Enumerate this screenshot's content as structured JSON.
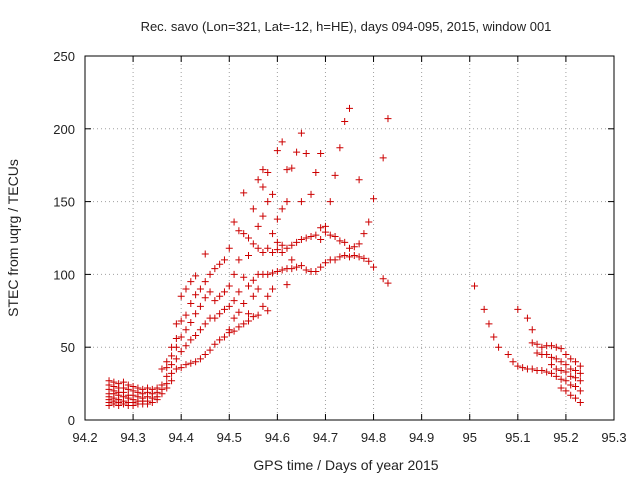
{
  "chart_data": {
    "type": "scatter",
    "title": "Rec. savo (Lon=321, Lat=-12, h=HE), days 094-095, 2015, window 001",
    "xlabel": "GPS time / Days of year 2015",
    "ylabel": "STEC from uqrg / TECUs",
    "xlim": [
      94.2,
      95.3
    ],
    "ylim": [
      0,
      250
    ],
    "xticks": [
      "94.2",
      "94.3",
      "94.4",
      "94.5",
      "94.6",
      "94.7",
      "94.8",
      "94.9",
      "95",
      "95.1",
      "95.2",
      "95.3"
    ],
    "yticks": [
      "0",
      "50",
      "100",
      "150",
      "200",
      "250"
    ],
    "marker": "+",
    "marker_color": "#cc0000",
    "grid": true,
    "border": true,
    "points": [
      [
        94.25,
        27
      ],
      [
        94.25,
        24
      ],
      [
        94.25,
        21
      ],
      [
        94.25,
        18
      ],
      [
        94.25,
        16
      ],
      [
        94.25,
        14
      ],
      [
        94.25,
        12
      ],
      [
        94.25,
        10
      ],
      [
        94.26,
        26
      ],
      [
        94.26,
        23
      ],
      [
        94.26,
        20
      ],
      [
        94.26,
        18
      ],
      [
        94.26,
        15
      ],
      [
        94.26,
        13
      ],
      [
        94.26,
        11
      ],
      [
        94.27,
        25
      ],
      [
        94.27,
        22
      ],
      [
        94.27,
        19
      ],
      [
        94.27,
        17
      ],
      [
        94.27,
        14
      ],
      [
        94.27,
        12
      ],
      [
        94.27,
        10
      ],
      [
        94.28,
        26
      ],
      [
        94.28,
        22
      ],
      [
        94.28,
        19
      ],
      [
        94.28,
        16
      ],
      [
        94.28,
        13
      ],
      [
        94.28,
        11
      ],
      [
        94.29,
        24
      ],
      [
        94.29,
        21
      ],
      [
        94.29,
        17
      ],
      [
        94.29,
        15
      ],
      [
        94.29,
        12
      ],
      [
        94.29,
        10
      ],
      [
        94.3,
        23
      ],
      [
        94.3,
        20
      ],
      [
        94.3,
        17
      ],
      [
        94.3,
        14
      ],
      [
        94.3,
        12
      ],
      [
        94.3,
        10
      ],
      [
        94.31,
        22
      ],
      [
        94.31,
        19
      ],
      [
        94.31,
        16
      ],
      [
        94.31,
        13
      ],
      [
        94.31,
        11
      ],
      [
        94.32,
        21
      ],
      [
        94.32,
        18
      ],
      [
        94.32,
        15
      ],
      [
        94.32,
        13
      ],
      [
        94.32,
        11
      ],
      [
        94.33,
        22
      ],
      [
        94.33,
        19
      ],
      [
        94.33,
        16
      ],
      [
        94.33,
        13
      ],
      [
        94.33,
        11
      ],
      [
        94.34,
        21
      ],
      [
        94.34,
        18
      ],
      [
        94.34,
        15
      ],
      [
        94.34,
        12
      ],
      [
        94.35,
        22
      ],
      [
        94.35,
        19
      ],
      [
        94.35,
        16
      ],
      [
        94.35,
        14
      ],
      [
        94.36,
        35
      ],
      [
        94.36,
        24
      ],
      [
        94.36,
        21
      ],
      [
        94.36,
        18
      ],
      [
        94.37,
        40
      ],
      [
        94.37,
        36
      ],
      [
        94.37,
        30
      ],
      [
        94.37,
        25
      ],
      [
        94.37,
        22
      ],
      [
        94.38,
        50
      ],
      [
        94.38,
        44
      ],
      [
        94.38,
        38
      ],
      [
        94.38,
        32
      ],
      [
        94.38,
        27
      ],
      [
        94.39,
        66
      ],
      [
        94.39,
        56
      ],
      [
        94.39,
        50
      ],
      [
        94.39,
        42
      ],
      [
        94.39,
        35
      ],
      [
        94.4,
        85
      ],
      [
        94.4,
        68
      ],
      [
        94.4,
        57
      ],
      [
        94.4,
        47
      ],
      [
        94.4,
        36
      ],
      [
        94.41,
        90
      ],
      [
        94.41,
        72
      ],
      [
        94.41,
        62
      ],
      [
        94.41,
        51
      ],
      [
        94.41,
        38
      ],
      [
        94.42,
        95
      ],
      [
        94.42,
        80
      ],
      [
        94.42,
        67
      ],
      [
        94.42,
        55
      ],
      [
        94.42,
        39
      ],
      [
        94.43,
        99
      ],
      [
        94.43,
        86
      ],
      [
        94.43,
        73
      ],
      [
        94.43,
        58
      ],
      [
        94.43,
        40
      ],
      [
        94.44,
        90
      ],
      [
        94.44,
        78
      ],
      [
        94.44,
        62
      ],
      [
        94.44,
        42
      ],
      [
        94.45,
        114
      ],
      [
        94.45,
        95
      ],
      [
        94.45,
        84
      ],
      [
        94.45,
        66
      ],
      [
        94.45,
        45
      ],
      [
        94.46,
        100
      ],
      [
        94.46,
        88
      ],
      [
        94.46,
        70
      ],
      [
        94.46,
        48
      ],
      [
        94.47,
        104
      ],
      [
        94.47,
        82
      ],
      [
        94.47,
        70
      ],
      [
        94.47,
        52
      ],
      [
        94.48,
        107
      ],
      [
        94.48,
        85
      ],
      [
        94.48,
        73
      ],
      [
        94.48,
        55
      ],
      [
        94.49,
        110
      ],
      [
        94.49,
        88
      ],
      [
        94.49,
        76
      ],
      [
        94.49,
        57
      ],
      [
        94.5,
        118
      ],
      [
        94.5,
        92
      ],
      [
        94.5,
        78
      ],
      [
        94.5,
        62
      ],
      [
        94.5,
        60
      ],
      [
        94.51,
        136
      ],
      [
        94.51,
        100
      ],
      [
        94.51,
        82
      ],
      [
        94.51,
        70
      ],
      [
        94.51,
        61
      ],
      [
        94.52,
        130
      ],
      [
        94.52,
        110
      ],
      [
        94.52,
        88
      ],
      [
        94.52,
        74
      ],
      [
        94.52,
        64
      ],
      [
        94.53,
        156
      ],
      [
        94.53,
        128
      ],
      [
        94.53,
        98
      ],
      [
        94.53,
        80
      ],
      [
        94.53,
        66
      ],
      [
        94.54,
        125
      ],
      [
        94.54,
        113
      ],
      [
        94.54,
        92
      ],
      [
        94.54,
        73
      ],
      [
        94.54,
        68
      ],
      [
        94.55,
        145
      ],
      [
        94.55,
        121
      ],
      [
        94.55,
        96
      ],
      [
        94.55,
        85
      ],
      [
        94.55,
        71
      ],
      [
        94.56,
        165
      ],
      [
        94.56,
        133
      ],
      [
        94.56,
        118
      ],
      [
        94.56,
        100
      ],
      [
        94.56,
        90
      ],
      [
        94.56,
        72
      ],
      [
        94.57,
        172
      ],
      [
        94.57,
        160
      ],
      [
        94.57,
        140
      ],
      [
        94.57,
        115
      ],
      [
        94.57,
        100
      ],
      [
        94.57,
        78
      ],
      [
        94.58,
        170
      ],
      [
        94.58,
        150
      ],
      [
        94.58,
        118
      ],
      [
        94.58,
        100
      ],
      [
        94.58,
        85
      ],
      [
        94.58,
        75
      ],
      [
        94.59,
        155
      ],
      [
        94.59,
        128
      ],
      [
        94.59,
        115
      ],
      [
        94.59,
        101
      ],
      [
        94.59,
        90
      ],
      [
        94.6,
        185
      ],
      [
        94.6,
        138
      ],
      [
        94.6,
        122
      ],
      [
        94.6,
        117
      ],
      [
        94.6,
        102
      ],
      [
        94.61,
        191
      ],
      [
        94.61,
        145
      ],
      [
        94.61,
        120
      ],
      [
        94.61,
        115
      ],
      [
        94.61,
        103
      ],
      [
        94.62,
        172
      ],
      [
        94.62,
        150
      ],
      [
        94.62,
        118
      ],
      [
        94.62,
        104
      ],
      [
        94.62,
        93
      ],
      [
        94.63,
        173
      ],
      [
        94.63,
        120
      ],
      [
        94.63,
        110
      ],
      [
        94.63,
        104
      ],
      [
        94.64,
        184
      ],
      [
        94.64,
        122
      ],
      [
        94.64,
        105
      ],
      [
        94.65,
        197
      ],
      [
        94.65,
        150
      ],
      [
        94.65,
        124
      ],
      [
        94.65,
        106
      ],
      [
        94.66,
        183
      ],
      [
        94.66,
        125
      ],
      [
        94.66,
        103
      ],
      [
        94.67,
        155
      ],
      [
        94.67,
        126
      ],
      [
        94.67,
        102
      ],
      [
        94.68,
        170
      ],
      [
        94.68,
        127
      ],
      [
        94.68,
        102
      ],
      [
        94.69,
        183
      ],
      [
        94.69,
        132
      ],
      [
        94.69,
        124
      ],
      [
        94.69,
        105
      ],
      [
        94.7,
        133
      ],
      [
        94.7,
        129
      ],
      [
        94.7,
        108
      ],
      [
        94.71,
        150
      ],
      [
        94.71,
        127
      ],
      [
        94.71,
        110
      ],
      [
        94.72,
        168
      ],
      [
        94.72,
        126
      ],
      [
        94.72,
        110
      ],
      [
        94.73,
        187
      ],
      [
        94.73,
        123
      ],
      [
        94.73,
        112
      ],
      [
        94.74,
        205
      ],
      [
        94.74,
        122
      ],
      [
        94.74,
        113
      ],
      [
        94.75,
        214
      ],
      [
        94.75,
        118
      ],
      [
        94.75,
        112
      ],
      [
        94.76,
        119
      ],
      [
        94.76,
        113
      ],
      [
        94.77,
        165
      ],
      [
        94.77,
        121
      ],
      [
        94.77,
        112
      ],
      [
        94.78,
        128
      ],
      [
        94.78,
        111
      ],
      [
        94.79,
        136
      ],
      [
        94.79,
        109
      ],
      [
        94.8,
        152
      ],
      [
        94.8,
        105
      ],
      [
        94.82,
        180
      ],
      [
        94.82,
        97
      ],
      [
        94.83,
        207
      ],
      [
        94.83,
        94
      ],
      [
        95.01,
        92
      ],
      [
        95.03,
        76
      ],
      [
        95.04,
        66
      ],
      [
        95.05,
        57
      ],
      [
        95.06,
        50
      ],
      [
        95.08,
        45
      ],
      [
        95.09,
        40
      ],
      [
        95.1,
        76
      ],
      [
        95.1,
        37
      ],
      [
        95.11,
        36
      ],
      [
        95.12,
        70
      ],
      [
        95.12,
        35
      ],
      [
        95.13,
        62
      ],
      [
        95.13,
        53
      ],
      [
        95.13,
        35
      ],
      [
        95.14,
        52
      ],
      [
        95.14,
        46
      ],
      [
        95.14,
        34
      ],
      [
        95.15,
        50
      ],
      [
        95.15,
        45
      ],
      [
        95.15,
        34
      ],
      [
        95.16,
        51
      ],
      [
        95.16,
        45
      ],
      [
        95.16,
        33
      ],
      [
        95.17,
        51
      ],
      [
        95.17,
        43
      ],
      [
        95.17,
        38
      ],
      [
        95.17,
        32
      ],
      [
        95.18,
        50
      ],
      [
        95.18,
        42
      ],
      [
        95.18,
        35
      ],
      [
        95.18,
        30
      ],
      [
        95.19,
        49
      ],
      [
        95.19,
        40
      ],
      [
        95.19,
        34
      ],
      [
        95.19,
        28
      ],
      [
        95.19,
        22
      ],
      [
        95.2,
        45
      ],
      [
        95.2,
        38
      ],
      [
        95.2,
        33
      ],
      [
        95.2,
        27
      ],
      [
        95.2,
        20
      ],
      [
        95.21,
        42
      ],
      [
        95.21,
        35
      ],
      [
        95.21,
        30
      ],
      [
        95.21,
        24
      ],
      [
        95.21,
        17
      ],
      [
        95.22,
        40
      ],
      [
        95.22,
        34
      ],
      [
        95.22,
        29
      ],
      [
        95.22,
        23
      ],
      [
        95.22,
        15
      ],
      [
        95.23,
        37
      ],
      [
        95.23,
        32
      ],
      [
        95.23,
        27
      ],
      [
        95.23,
        20
      ],
      [
        95.23,
        12
      ]
    ]
  }
}
